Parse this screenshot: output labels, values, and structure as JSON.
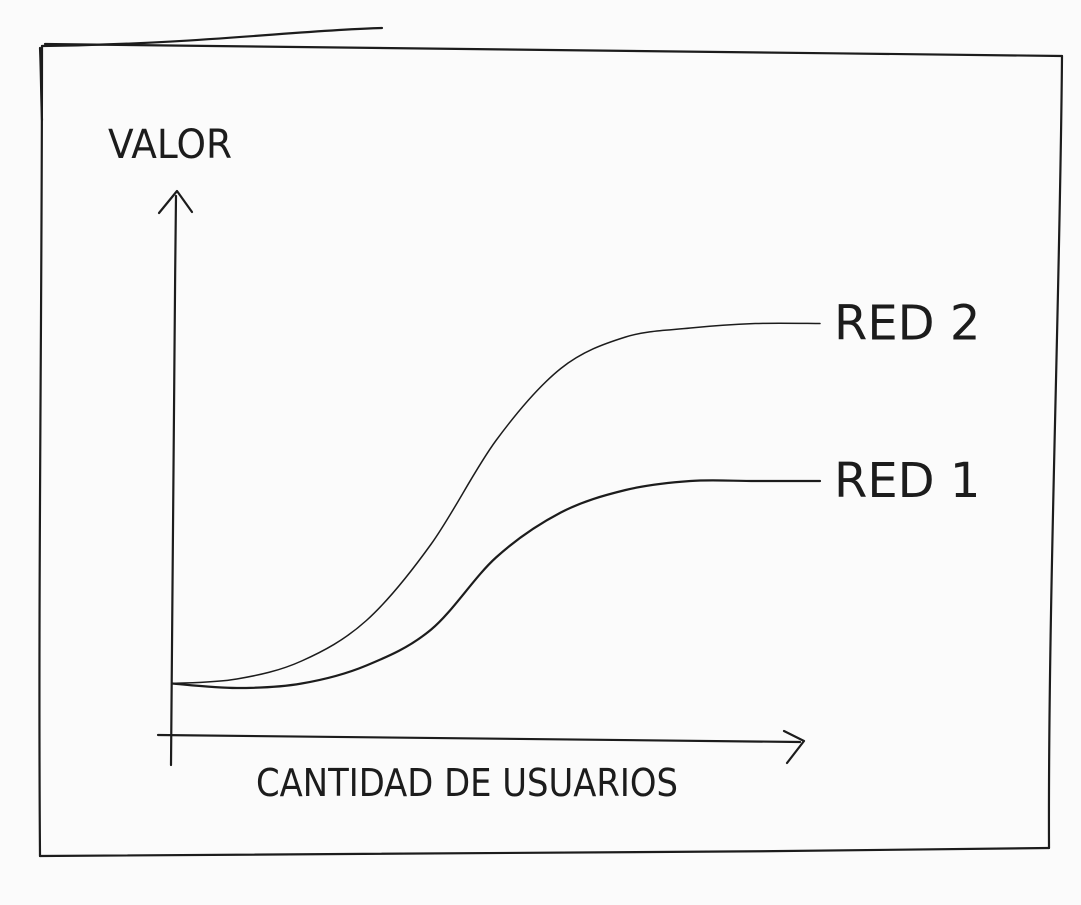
{
  "chart_data": {
    "type": "line",
    "title": "",
    "xlabel": "CANTIDAD DE USUARIOS",
    "ylabel": "VALOR",
    "x_ticks": [],
    "y_ticks": [],
    "xlim": [
      0,
      100
    ],
    "ylim": [
      0,
      100
    ],
    "grid": false,
    "legend": "end-of-line labels",
    "series": [
      {
        "name": "RED 2",
        "x": [
          0,
          10,
          20,
          30,
          40,
          50,
          60,
          70,
          80,
          90,
          100
        ],
        "y": [
          5,
          6,
          10,
          19,
          36,
          59,
          75,
          82,
          84,
          85,
          85
        ]
      },
      {
        "name": "RED 1",
        "x": [
          0,
          10,
          20,
          30,
          40,
          50,
          60,
          70,
          80,
          90,
          100
        ],
        "y": [
          5,
          4,
          5,
          9,
          17,
          33,
          43,
          48,
          50,
          50,
          50
        ]
      }
    ]
  }
}
